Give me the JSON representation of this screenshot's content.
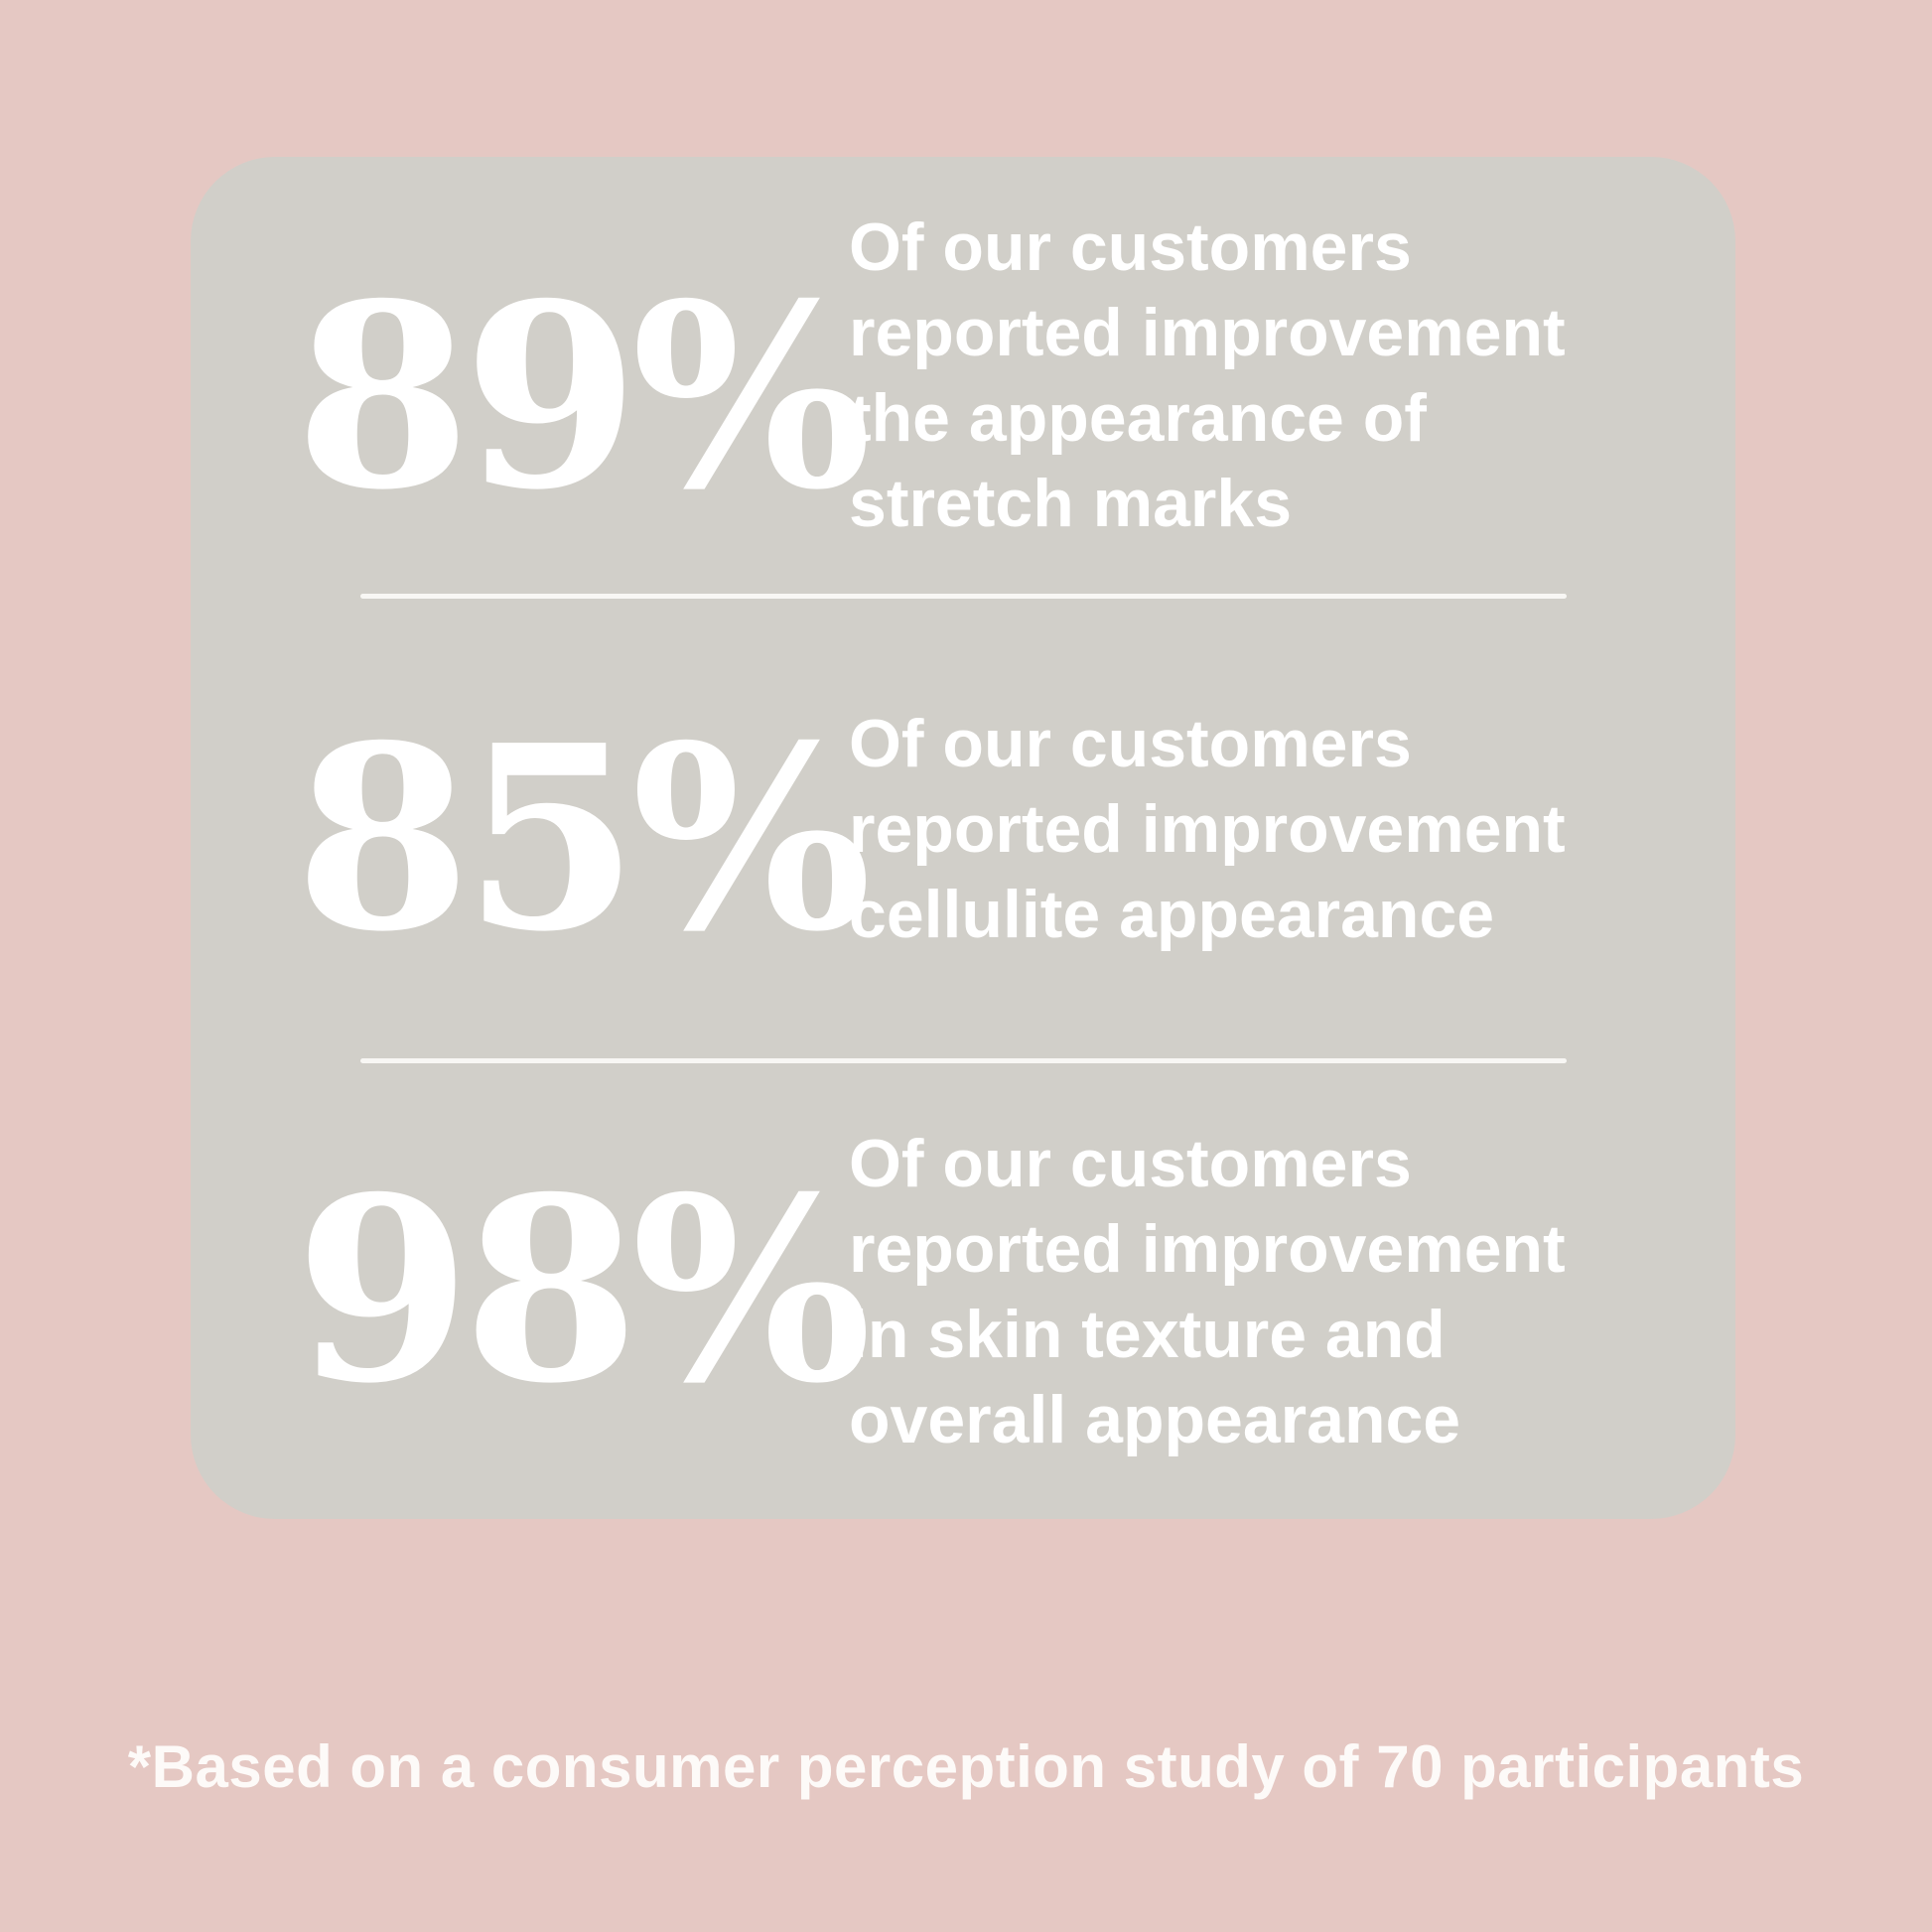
{
  "colors": {
    "background": "#e5c8c3",
    "card": "#d1cfc9",
    "stat_text": "#ffffff",
    "divider": "#f8f7f4",
    "footnote_text": "#fdfaf8"
  },
  "stats": [
    {
      "value": "89%",
      "lines": [
        "Of our customers",
        "reported improvement",
        "the appearance of",
        "stretch marks"
      ]
    },
    {
      "value": "85%",
      "lines": [
        "Of our customers",
        "reported improvement",
        "cellulite appearance"
      ]
    },
    {
      "value": "98%",
      "lines": [
        "Of our customers",
        "reported improvement",
        "in skin texture and",
        "overall appearance"
      ]
    }
  ],
  "footnote": "*Based on a consumer perception study of 70 participants"
}
